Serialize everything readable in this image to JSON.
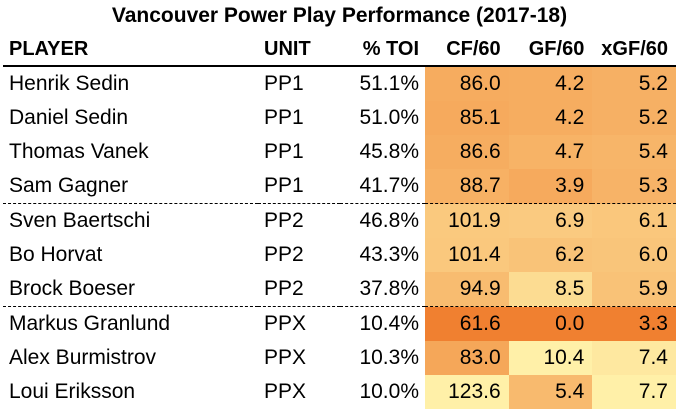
{
  "chart_data": {
    "type": "table",
    "title": "Vancouver Power Play Performance (2017-18)",
    "columns": [
      "PLAYER",
      "UNIT",
      "% TOI",
      "CF/60",
      "GF/60",
      "xGF/60"
    ],
    "rows": [
      {
        "player": "Henrik Sedin",
        "unit": "PP1",
        "toi": "51.1%",
        "cf60": "86.0",
        "gf60": "4.2",
        "xgf60": "5.2"
      },
      {
        "player": "Daniel Sedin",
        "unit": "PP1",
        "toi": "51.0%",
        "cf60": "85.1",
        "gf60": "4.2",
        "xgf60": "5.2"
      },
      {
        "player": "Thomas Vanek",
        "unit": "PP1",
        "toi": "45.8%",
        "cf60": "86.6",
        "gf60": "4.7",
        "xgf60": "5.4"
      },
      {
        "player": "Sam Gagner",
        "unit": "PP1",
        "toi": "41.7%",
        "cf60": "88.7",
        "gf60": "3.9",
        "xgf60": "5.3"
      },
      {
        "player": "Sven Baertschi",
        "unit": "PP2",
        "toi": "46.8%",
        "cf60": "101.9",
        "gf60": "6.9",
        "xgf60": "6.1"
      },
      {
        "player": "Bo Horvat",
        "unit": "PP2",
        "toi": "43.3%",
        "cf60": "101.4",
        "gf60": "6.2",
        "xgf60": "6.0"
      },
      {
        "player": "Brock Boeser",
        "unit": "PP2",
        "toi": "37.8%",
        "cf60": "94.9",
        "gf60": "8.5",
        "xgf60": "5.9"
      },
      {
        "player": "Markus Granlund",
        "unit": "PPX",
        "toi": "10.4%",
        "cf60": "61.6",
        "gf60": "0.0",
        "xgf60": "3.3"
      },
      {
        "player": "Alex Burmistrov",
        "unit": "PPX",
        "toi": "10.3%",
        "cf60": "83.0",
        "gf60": "10.4",
        "xgf60": "7.4"
      },
      {
        "player": "Loui Eriksson",
        "unit": "PPX",
        "toi": "10.0%",
        "cf60": "123.6",
        "gf60": "5.4",
        "xgf60": "7.7"
      }
    ],
    "heat_colors": {
      "low": "#f08030",
      "high": "#fff0a8"
    }
  }
}
